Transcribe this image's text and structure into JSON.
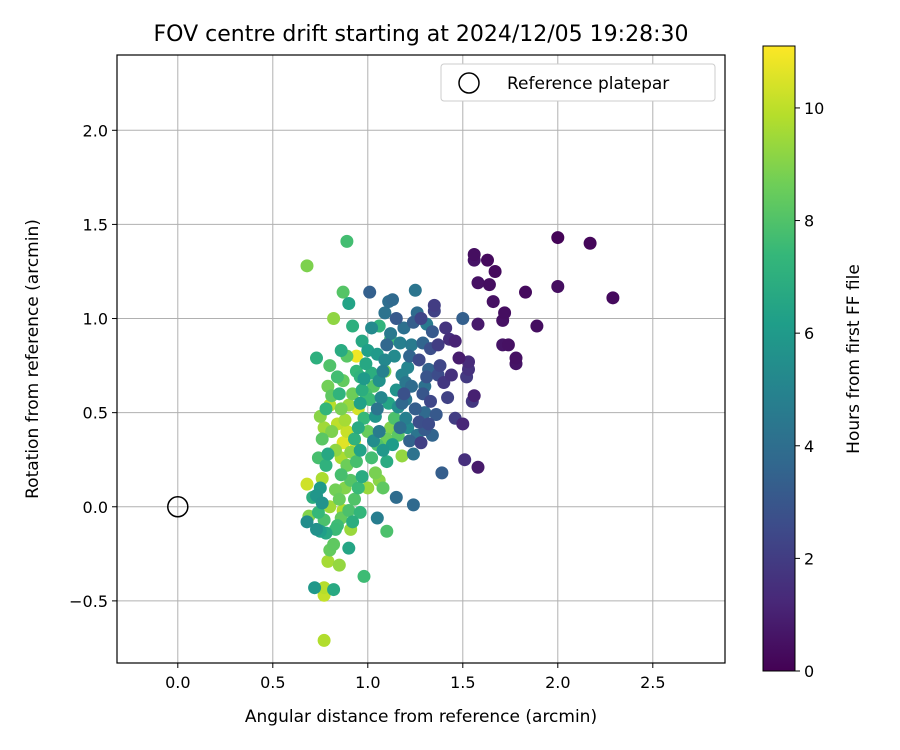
{
  "chart_data": {
    "type": "scatter",
    "title": "FOV centre drift starting at 2024/12/05 19:28:30",
    "xlabel": "Angular distance from reference (arcmin)",
    "ylabel": "Rotation from reference (arcmin)",
    "xlim": [
      -0.32,
      2.88
    ],
    "ylim": [
      -0.83,
      2.4
    ],
    "xticks": [
      0.0,
      0.5,
      1.0,
      1.5,
      2.0,
      2.5
    ],
    "xtick_labels": [
      "0.0",
      "0.5",
      "1.0",
      "1.5",
      "2.0",
      "2.5"
    ],
    "yticks": [
      -0.5,
      0.0,
      0.5,
      1.0,
      1.5,
      2.0
    ],
    "ytick_labels": [
      "−0.5",
      "0.0",
      "0.5",
      "1.0",
      "1.5",
      "2.0"
    ],
    "grid": true,
    "legend": {
      "placement": "top-right",
      "entries": [
        "Reference platepar"
      ]
    },
    "reference_point": {
      "x": 0.0,
      "y": 0.0,
      "label": "Reference platepar",
      "marker": "open-circle"
    },
    "colorbar": {
      "label": "Hours from first FF file",
      "colormap": "viridis",
      "range": [
        0,
        11.1
      ],
      "ticks": [
        0,
        2,
        4,
        6,
        8,
        10
      ],
      "tick_labels": [
        "0",
        "2",
        "4",
        "6",
        "8",
        "10"
      ]
    },
    "colormap_stops": [
      "#440154",
      "#482878",
      "#3e4989",
      "#31688e",
      "#26828e",
      "#1f9e89",
      "#35b779",
      "#6ece58",
      "#b5de2b",
      "#fde725"
    ],
    "points": [
      {
        "x": 2.0,
        "y": 1.43,
        "c": 0.1
      },
      {
        "x": 2.17,
        "y": 1.4,
        "c": 0.2
      },
      {
        "x": 2.29,
        "y": 1.11,
        "c": 0.3
      },
      {
        "x": 2.0,
        "y": 1.17,
        "c": 0.4
      },
      {
        "x": 1.83,
        "y": 1.14,
        "c": 0.3
      },
      {
        "x": 1.89,
        "y": 0.96,
        "c": 0.4
      },
      {
        "x": 1.78,
        "y": 0.79,
        "c": 0.5
      },
      {
        "x": 1.78,
        "y": 0.76,
        "c": 0.6
      },
      {
        "x": 1.74,
        "y": 0.86,
        "c": 0.5
      },
      {
        "x": 1.71,
        "y": 0.86,
        "c": 0.6
      },
      {
        "x": 1.72,
        "y": 1.03,
        "c": 0.4
      },
      {
        "x": 1.71,
        "y": 0.99,
        "c": 0.5
      },
      {
        "x": 1.67,
        "y": 1.25,
        "c": 0.3
      },
      {
        "x": 1.66,
        "y": 1.09,
        "c": 0.5
      },
      {
        "x": 1.64,
        "y": 1.18,
        "c": 0.4
      },
      {
        "x": 1.63,
        "y": 1.31,
        "c": 0.3
      },
      {
        "x": 1.58,
        "y": 1.19,
        "c": 0.5
      },
      {
        "x": 1.56,
        "y": 1.34,
        "c": 0.4
      },
      {
        "x": 1.56,
        "y": 1.31,
        "c": 0.6
      },
      {
        "x": 1.58,
        "y": 0.97,
        "c": 0.8
      },
      {
        "x": 1.56,
        "y": 0.59,
        "c": 1.0
      },
      {
        "x": 1.55,
        "y": 0.56,
        "c": 1.8
      },
      {
        "x": 1.58,
        "y": 0.21,
        "c": 0.8
      },
      {
        "x": 1.51,
        "y": 0.25,
        "c": 1.5
      },
      {
        "x": 1.53,
        "y": 0.77,
        "c": 1.4
      },
      {
        "x": 1.53,
        "y": 0.73,
        "c": 1.6
      },
      {
        "x": 1.52,
        "y": 0.69,
        "c": 1.9
      },
      {
        "x": 1.5,
        "y": 0.44,
        "c": 1.2
      },
      {
        "x": 1.48,
        "y": 0.79,
        "c": 0.9
      },
      {
        "x": 1.46,
        "y": 0.88,
        "c": 1.1
      },
      {
        "x": 1.43,
        "y": 0.89,
        "c": 1.5
      },
      {
        "x": 1.41,
        "y": 0.95,
        "c": 1.7
      },
      {
        "x": 1.46,
        "y": 0.47,
        "c": 2.0
      },
      {
        "x": 1.5,
        "y": 1.0,
        "c": 3.4
      },
      {
        "x": 1.38,
        "y": 0.75,
        "c": 2.3
      },
      {
        "x": 1.37,
        "y": 0.7,
        "c": 2.6
      },
      {
        "x": 1.35,
        "y": 1.07,
        "c": 2.0
      },
      {
        "x": 1.35,
        "y": 1.04,
        "c": 2.2
      },
      {
        "x": 1.34,
        "y": 0.93,
        "c": 3.1
      },
      {
        "x": 1.33,
        "y": 0.84,
        "c": 2.7
      },
      {
        "x": 1.32,
        "y": 0.73,
        "c": 3.5
      },
      {
        "x": 1.31,
        "y": 0.69,
        "c": 2.9
      },
      {
        "x": 1.3,
        "y": 0.64,
        "c": 4.1
      },
      {
        "x": 1.33,
        "y": 0.56,
        "c": 2.4
      },
      {
        "x": 1.3,
        "y": 0.5,
        "c": 3.8
      },
      {
        "x": 1.32,
        "y": 0.44,
        "c": 2.6
      },
      {
        "x": 1.3,
        "y": 0.41,
        "c": 3.2
      },
      {
        "x": 1.28,
        "y": 0.34,
        "c": 2.1
      },
      {
        "x": 1.39,
        "y": 0.18,
        "c": 3.3
      },
      {
        "x": 1.25,
        "y": 1.15,
        "c": 4.3
      },
      {
        "x": 1.26,
        "y": 1.03,
        "c": 3.9
      },
      {
        "x": 1.24,
        "y": 0.98,
        "c": 3.3
      },
      {
        "x": 1.23,
        "y": 0.86,
        "c": 4.6
      },
      {
        "x": 1.22,
        "y": 0.8,
        "c": 3.6
      },
      {
        "x": 1.21,
        "y": 0.74,
        "c": 5.0
      },
      {
        "x": 1.2,
        "y": 0.66,
        "c": 4.4
      },
      {
        "x": 1.19,
        "y": 0.6,
        "c": 2.8
      },
      {
        "x": 1.18,
        "y": 0.55,
        "c": 3.7
      },
      {
        "x": 1.2,
        "y": 0.47,
        "c": 4.8
      },
      {
        "x": 1.17,
        "y": 0.42,
        "c": 4.0
      },
      {
        "x": 1.22,
        "y": 0.35,
        "c": 3.5
      },
      {
        "x": 1.24,
        "y": 0.28,
        "c": 4.2
      },
      {
        "x": 1.24,
        "y": 0.01,
        "c": 3.8
      },
      {
        "x": 1.15,
        "y": 1.0,
        "c": 3.1
      },
      {
        "x": 1.13,
        "y": 1.1,
        "c": 3.8
      },
      {
        "x": 1.11,
        "y": 1.09,
        "c": 4.0
      },
      {
        "x": 1.12,
        "y": 0.92,
        "c": 4.5
      },
      {
        "x": 1.1,
        "y": 0.86,
        "c": 3.7
      },
      {
        "x": 1.09,
        "y": 0.78,
        "c": 5.2
      },
      {
        "x": 1.08,
        "y": 0.72,
        "c": 4.9
      },
      {
        "x": 1.06,
        "y": 0.67,
        "c": 5.6
      },
      {
        "x": 1.07,
        "y": 0.58,
        "c": 5.1
      },
      {
        "x": 1.05,
        "y": 0.52,
        "c": 4.3
      },
      {
        "x": 1.04,
        "y": 0.48,
        "c": 5.8
      },
      {
        "x": 1.06,
        "y": 0.4,
        "c": 4.6
      },
      {
        "x": 1.03,
        "y": 0.35,
        "c": 5.4
      },
      {
        "x": 1.08,
        "y": 0.3,
        "c": 5.9
      },
      {
        "x": 1.15,
        "y": 0.05,
        "c": 3.9
      },
      {
        "x": 1.05,
        "y": -0.06,
        "c": 4.7
      },
      {
        "x": 1.01,
        "y": 1.14,
        "c": 3.4
      },
      {
        "x": 1.02,
        "y": 0.95,
        "c": 5.3
      },
      {
        "x": 1.0,
        "y": 0.83,
        "c": 6.2
      },
      {
        "x": 0.99,
        "y": 0.76,
        "c": 6.6
      },
      {
        "x": 0.98,
        "y": 0.68,
        "c": 6.0
      },
      {
        "x": 0.97,
        "y": 0.62,
        "c": 6.9
      },
      {
        "x": 0.96,
        "y": 0.55,
        "c": 6.3
      },
      {
        "x": 0.98,
        "y": 0.47,
        "c": 7.4
      },
      {
        "x": 0.95,
        "y": 0.42,
        "c": 6.7
      },
      {
        "x": 0.93,
        "y": 0.36,
        "c": 7.1
      },
      {
        "x": 0.96,
        "y": 0.3,
        "c": 6.4
      },
      {
        "x": 0.94,
        "y": 0.24,
        "c": 7.8
      },
      {
        "x": 0.97,
        "y": 0.16,
        "c": 6.8
      },
      {
        "x": 0.95,
        "y": 0.1,
        "c": 7.5
      },
      {
        "x": 0.93,
        "y": 0.04,
        "c": 8.0
      },
      {
        "x": 0.96,
        "y": -0.03,
        "c": 7.3
      },
      {
        "x": 0.92,
        "y": -0.08,
        "c": 6.9
      },
      {
        "x": 0.91,
        "y": -0.12,
        "c": 9.4
      },
      {
        "x": 0.9,
        "y": -0.22,
        "c": 6.5
      },
      {
        "x": 0.98,
        "y": -0.37,
        "c": 7.6
      },
      {
        "x": 1.1,
        "y": -0.13,
        "c": 7.9
      },
      {
        "x": 0.89,
        "y": 1.41,
        "c": 7.7
      },
      {
        "x": 0.87,
        "y": 1.14,
        "c": 8.1
      },
      {
        "x": 0.9,
        "y": 1.08,
        "c": 6.4
      },
      {
        "x": 0.92,
        "y": 0.96,
        "c": 7.0
      },
      {
        "x": 0.89,
        "y": 0.8,
        "c": 8.2
      },
      {
        "x": 0.87,
        "y": 0.67,
        "c": 8.4
      },
      {
        "x": 0.85,
        "y": 0.6,
        "c": 7.2
      },
      {
        "x": 0.86,
        "y": 0.52,
        "c": 8.8
      },
      {
        "x": 0.88,
        "y": 0.46,
        "c": 9.6
      },
      {
        "x": 0.89,
        "y": 0.4,
        "c": 10.2
      },
      {
        "x": 0.87,
        "y": 0.34,
        "c": 10.6
      },
      {
        "x": 0.91,
        "y": 0.29,
        "c": 9.1
      },
      {
        "x": 0.89,
        "y": 0.22,
        "c": 8.6
      },
      {
        "x": 0.86,
        "y": 0.17,
        "c": 7.8
      },
      {
        "x": 0.88,
        "y": 0.1,
        "c": 9.0
      },
      {
        "x": 0.85,
        "y": 0.04,
        "c": 8.5
      },
      {
        "x": 0.87,
        "y": -0.02,
        "c": 9.8
      },
      {
        "x": 0.84,
        "y": -0.1,
        "c": 7.6
      },
      {
        "x": 0.82,
        "y": -0.2,
        "c": 8.3
      },
      {
        "x": 0.85,
        "y": -0.31,
        "c": 9.3
      },
      {
        "x": 0.94,
        "y": 0.8,
        "c": 10.9
      },
      {
        "x": 0.95,
        "y": 0.52,
        "c": 10.4
      },
      {
        "x": 0.93,
        "y": 0.35,
        "c": 11.0
      },
      {
        "x": 0.94,
        "y": 0.31,
        "c": 10.8
      },
      {
        "x": 0.82,
        "y": 1.0,
        "c": 9.2
      },
      {
        "x": 0.8,
        "y": 0.75,
        "c": 8.0
      },
      {
        "x": 0.79,
        "y": 0.64,
        "c": 8.7
      },
      {
        "x": 0.78,
        "y": 0.52,
        "c": 7.3
      },
      {
        "x": 0.8,
        "y": 0.54,
        "c": 9.9
      },
      {
        "x": 0.77,
        "y": 0.42,
        "c": 9.5
      },
      {
        "x": 0.76,
        "y": 0.36,
        "c": 8.2
      },
      {
        "x": 0.79,
        "y": 0.28,
        "c": 6.6
      },
      {
        "x": 0.78,
        "y": 0.22,
        "c": 7.1
      },
      {
        "x": 0.76,
        "y": 0.15,
        "c": 9.7
      },
      {
        "x": 0.75,
        "y": 0.1,
        "c": 6.0
      },
      {
        "x": 0.73,
        "y": 0.06,
        "c": 5.8
      },
      {
        "x": 0.71,
        "y": 0.05,
        "c": 6.9
      },
      {
        "x": 0.74,
        "y": -0.03,
        "c": 7.4
      },
      {
        "x": 0.77,
        "y": -0.07,
        "c": 7.9
      },
      {
        "x": 0.75,
        "y": -0.13,
        "c": 6.2
      },
      {
        "x": 0.73,
        "y": -0.12,
        "c": 5.6
      },
      {
        "x": 0.8,
        "y": -0.23,
        "c": 8.4
      },
      {
        "x": 0.79,
        "y": -0.29,
        "c": 9.6
      },
      {
        "x": 0.72,
        "y": -0.43,
        "c": 5.9
      },
      {
        "x": 0.82,
        "y": -0.44,
        "c": 6.7
      },
      {
        "x": 0.77,
        "y": -0.43,
        "c": 9.9
      },
      {
        "x": 0.77,
        "y": -0.47,
        "c": 10.1
      },
      {
        "x": 0.77,
        "y": -0.71,
        "c": 9.8
      },
      {
        "x": 0.68,
        "y": -0.08,
        "c": 5.4
      },
      {
        "x": 0.69,
        "y": -0.05,
        "c": 9.0
      },
      {
        "x": 0.68,
        "y": 0.12,
        "c": 10.3
      },
      {
        "x": 0.68,
        "y": 1.28,
        "c": 8.9
      },
      {
        "x": 0.73,
        "y": 0.79,
        "c": 7.0
      },
      {
        "x": 1.0,
        "y": 0.4,
        "c": 8.5
      },
      {
        "x": 1.02,
        "y": 0.26,
        "c": 7.7
      },
      {
        "x": 1.04,
        "y": 0.18,
        "c": 8.8
      },
      {
        "x": 1.06,
        "y": 0.14,
        "c": 9.1
      },
      {
        "x": 1.08,
        "y": 0.1,
        "c": 8.3
      },
      {
        "x": 1.0,
        "y": 0.1,
        "c": 9.4
      },
      {
        "x": 1.05,
        "y": 0.33,
        "c": 8.0
      },
      {
        "x": 1.1,
        "y": 0.36,
        "c": 8.6
      },
      {
        "x": 1.12,
        "y": 0.42,
        "c": 9.0
      },
      {
        "x": 1.16,
        "y": 0.38,
        "c": 8.2
      },
      {
        "x": 1.18,
        "y": 0.27,
        "c": 9.3
      },
      {
        "x": 1.14,
        "y": 0.47,
        "c": 7.9
      },
      {
        "x": 1.01,
        "y": 0.57,
        "c": 7.5
      },
      {
        "x": 1.03,
        "y": 0.64,
        "c": 8.1
      },
      {
        "x": 1.09,
        "y": 0.72,
        "c": 8.8
      },
      {
        "x": 1.12,
        "y": 0.89,
        "c": 7.6
      },
      {
        "x": 1.06,
        "y": 0.96,
        "c": 7.2
      },
      {
        "x": 1.11,
        "y": 0.55,
        "c": 6.5
      },
      {
        "x": 1.15,
        "y": 0.62,
        "c": 5.7
      },
      {
        "x": 1.18,
        "y": 0.7,
        "c": 5.0
      },
      {
        "x": 1.2,
        "y": 0.57,
        "c": 4.4
      },
      {
        "x": 1.23,
        "y": 0.64,
        "c": 3.9
      },
      {
        "x": 1.25,
        "y": 0.52,
        "c": 3.3
      },
      {
        "x": 1.27,
        "y": 0.45,
        "c": 2.7
      },
      {
        "x": 1.29,
        "y": 0.6,
        "c": 3.0
      },
      {
        "x": 1.27,
        "y": 0.78,
        "c": 2.5
      },
      {
        "x": 1.29,
        "y": 0.87,
        "c": 3.6
      },
      {
        "x": 1.31,
        "y": 0.97,
        "c": 4.6
      },
      {
        "x": 1.28,
        "y": 1.0,
        "c": 2.3
      },
      {
        "x": 1.37,
        "y": 0.86,
        "c": 2.0
      },
      {
        "x": 1.4,
        "y": 0.66,
        "c": 1.8
      },
      {
        "x": 1.42,
        "y": 0.58,
        "c": 2.2
      },
      {
        "x": 1.44,
        "y": 0.7,
        "c": 1.6
      },
      {
        "x": 1.36,
        "y": 0.49,
        "c": 3.1
      },
      {
        "x": 1.34,
        "y": 0.38,
        "c": 3.6
      },
      {
        "x": 1.26,
        "y": 0.38,
        "c": 4.3
      },
      {
        "x": 1.21,
        "y": 0.42,
        "c": 5.2
      },
      {
        "x": 1.16,
        "y": 0.53,
        "c": 5.5
      },
      {
        "x": 1.13,
        "y": 0.33,
        "c": 6.1
      },
      {
        "x": 1.1,
        "y": 0.24,
        "c": 6.8
      },
      {
        "x": 1.14,
        "y": 0.8,
        "c": 5.3
      },
      {
        "x": 1.17,
        "y": 0.87,
        "c": 4.8
      },
      {
        "x": 1.19,
        "y": 0.95,
        "c": 4.1
      },
      {
        "x": 1.09,
        "y": 1.03,
        "c": 4.2
      },
      {
        "x": 1.05,
        "y": 0.81,
        "c": 6.0
      },
      {
        "x": 1.02,
        "y": 0.71,
        "c": 6.9
      },
      {
        "x": 0.99,
        "y": 0.6,
        "c": 7.8
      },
      {
        "x": 0.96,
        "y": 0.69,
        "c": 7.2
      },
      {
        "x": 0.92,
        "y": 0.6,
        "c": 8.6
      },
      {
        "x": 0.9,
        "y": 0.54,
        "c": 9.4
      },
      {
        "x": 0.84,
        "y": 0.44,
        "c": 10.0
      },
      {
        "x": 0.83,
        "y": 0.3,
        "c": 9.2
      },
      {
        "x": 0.81,
        "y": 0.4,
        "c": 8.9
      },
      {
        "x": 0.86,
        "y": 0.26,
        "c": 9.7
      },
      {
        "x": 0.91,
        "y": 0.14,
        "c": 8.1
      },
      {
        "x": 0.83,
        "y": 0.09,
        "c": 8.7
      },
      {
        "x": 0.8,
        "y": 0.0,
        "c": 9.5
      },
      {
        "x": 0.86,
        "y": -0.06,
        "c": 8.4
      },
      {
        "x": 0.9,
        "y": -0.02,
        "c": 7.9
      },
      {
        "x": 0.78,
        "y": -0.14,
        "c": 6.6
      },
      {
        "x": 0.83,
        "y": -0.12,
        "c": 7.5
      },
      {
        "x": 0.76,
        "y": 0.02,
        "c": 5.7
      },
      {
        "x": 0.74,
        "y": 0.26,
        "c": 7.8
      },
      {
        "x": 0.75,
        "y": 0.48,
        "c": 9.1
      },
      {
        "x": 0.81,
        "y": 0.59,
        "c": 8.3
      },
      {
        "x": 0.84,
        "y": 0.69,
        "c": 7.7
      },
      {
        "x": 0.86,
        "y": 0.83,
        "c": 6.8
      },
      {
        "x": 0.94,
        "y": 0.72,
        "c": 7.4
      },
      {
        "x": 0.97,
        "y": 0.88,
        "c": 6.6
      }
    ]
  }
}
